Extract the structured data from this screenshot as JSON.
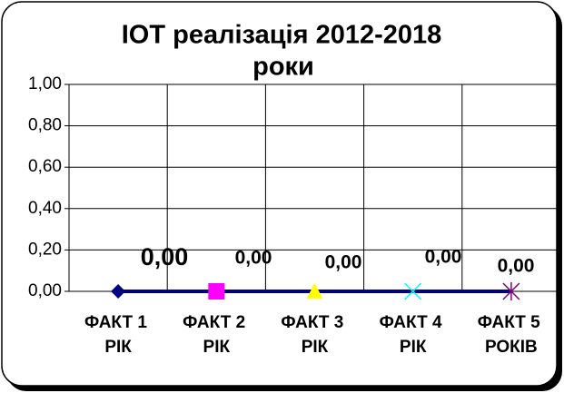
{
  "chart_data": {
    "type": "line",
    "title": [
      "ІОТ реалізація  2012-2018",
      "роки"
    ],
    "categories": [
      "ФАКТ 1 РІК",
      "ФАКТ 2 РІК",
      "ФАКТ 3 РІК",
      "ФАКТ 4 РІК",
      "ФАКТ 5 РОКІВ"
    ],
    "values": [
      0,
      0,
      0,
      0,
      0
    ],
    "value_labels": [
      "0,00",
      "0,00",
      "0,00",
      "0,00",
      "0,00"
    ],
    "color": "#000080",
    "markers": [
      "diamond",
      "square",
      "triangle",
      "x",
      "star"
    ],
    "marker_colors": [
      "#000080",
      "#ff00ff",
      "#ffff00",
      "#00ffff",
      "#800080"
    ],
    "ylim": [
      0,
      1
    ],
    "yticks": [
      {
        "value": 0,
        "label": "0,00"
      },
      {
        "value": 0.2,
        "label": "0,20"
      },
      {
        "value": 0.4,
        "label": "0,40"
      },
      {
        "value": 0.6,
        "label": "0,60"
      },
      {
        "value": 0.8,
        "label": "0,80"
      },
      {
        "value": 1,
        "label": "1,00"
      }
    ],
    "grid": true
  }
}
